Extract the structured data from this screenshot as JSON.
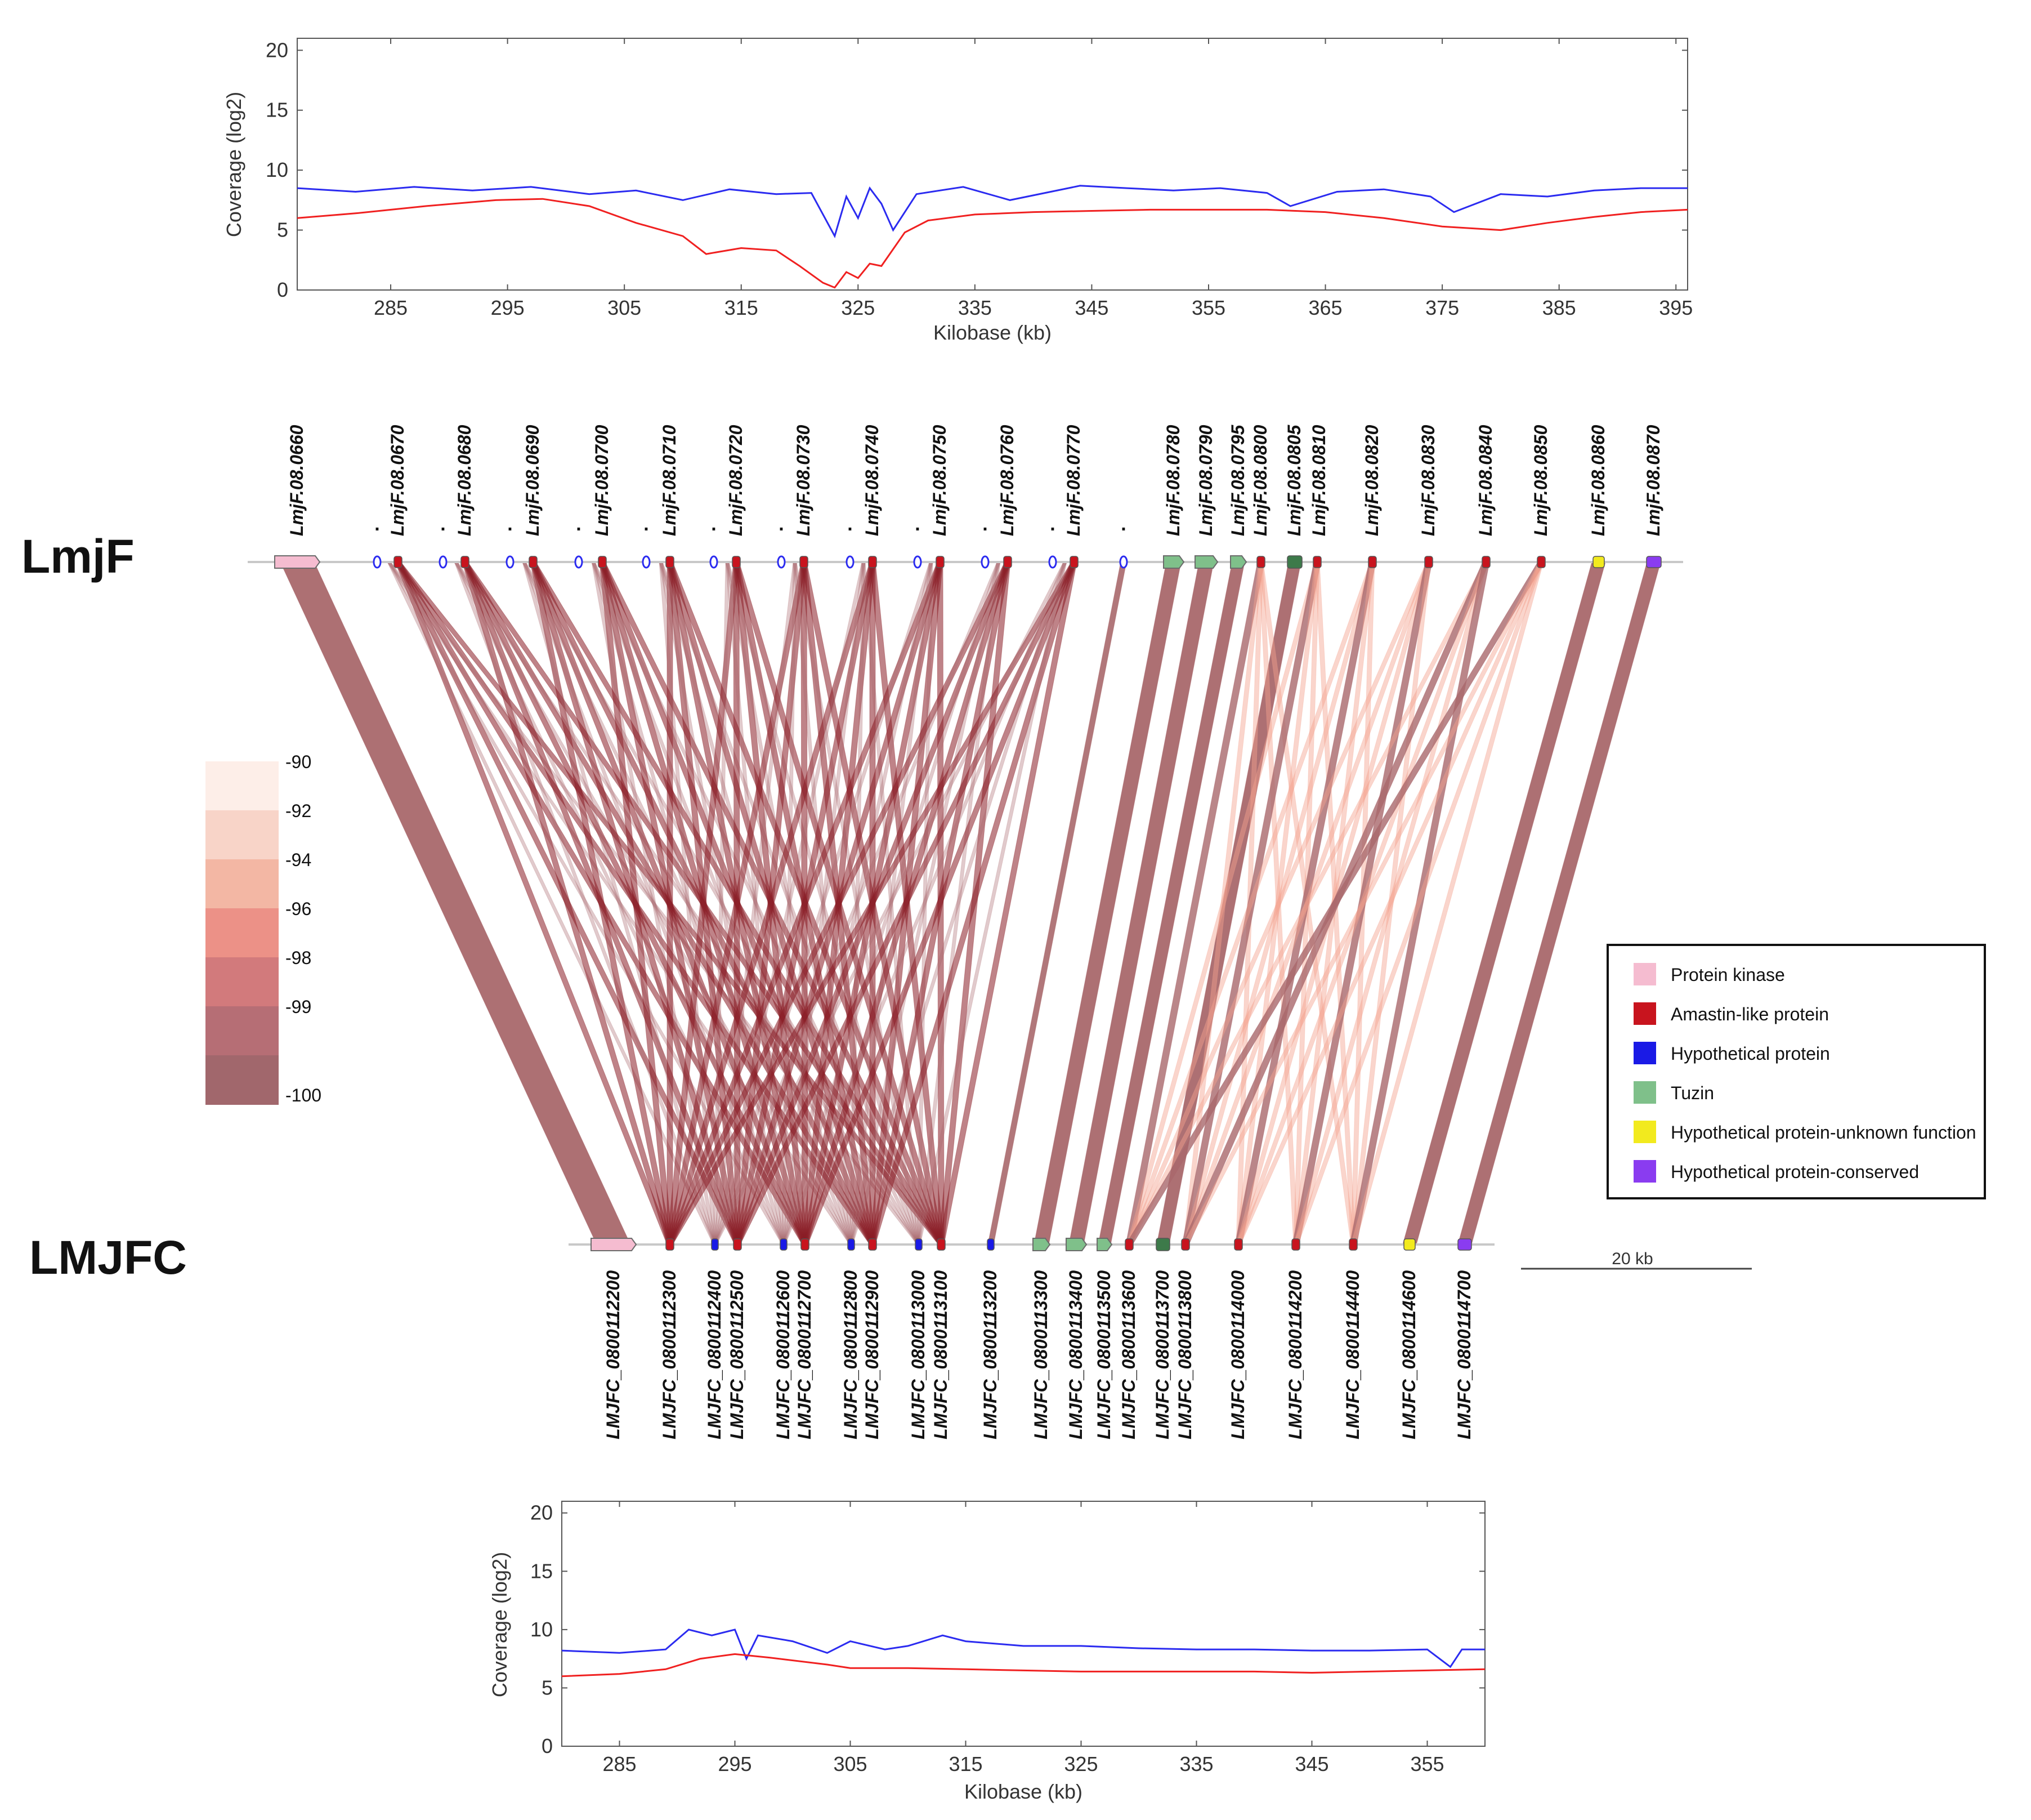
{
  "colors": {
    "coverage_a": "#2b2bf0",
    "coverage_b": "#f02020",
    "track_line": "#c8c8c8",
    "band_100": "#a9686c",
    "band_amastin": "#8b1e26",
    "band_light": "#f3a28e"
  },
  "tracks": {
    "top": "LmjF",
    "bottom": "LMJFC"
  },
  "scale_bar": "20 kb",
  "chart_data": [
    {
      "type": "line",
      "name": "coverage-top",
      "ylabel": "Coverage (log2)",
      "xlabel": "Kilobase (kb)",
      "xlim": [
        277,
        396
      ],
      "ylim": [
        0,
        21
      ],
      "xticks": [
        285,
        295,
        305,
        315,
        325,
        335,
        345,
        355,
        365,
        375,
        385,
        395
      ],
      "yticks": [
        0,
        5,
        10,
        15,
        20
      ],
      "series": [
        {
          "name": "blue",
          "color": "#2b2bf0",
          "x": [
            277,
            282,
            287,
            292,
            297,
            302,
            306,
            310,
            314,
            318,
            321,
            323,
            324,
            325,
            326,
            327,
            328,
            330,
            334,
            338,
            344,
            348,
            352,
            356,
            360,
            362,
            366,
            370,
            374,
            376,
            380,
            384,
            388,
            392,
            396
          ],
          "y": [
            8.5,
            8.2,
            8.6,
            8.3,
            8.6,
            8.0,
            8.3,
            7.5,
            8.4,
            8.0,
            8.1,
            4.5,
            7.8,
            6.0,
            8.5,
            7.2,
            5.0,
            8.0,
            8.6,
            7.5,
            8.7,
            8.5,
            8.3,
            8.5,
            8.1,
            7.0,
            8.2,
            8.4,
            7.8,
            6.5,
            8.0,
            7.8,
            8.3,
            8.5,
            8.5
          ]
        },
        {
          "name": "red",
          "color": "#f02020",
          "x": [
            277,
            282,
            288,
            294,
            298,
            302,
            306,
            310,
            312,
            315,
            318,
            320,
            322,
            323,
            324,
            325,
            326,
            327,
            329,
            331,
            335,
            340,
            345,
            350,
            355,
            360,
            365,
            370,
            375,
            380,
            384,
            388,
            392,
            396
          ],
          "y": [
            6.0,
            6.4,
            7.0,
            7.5,
            7.6,
            7.0,
            5.6,
            4.5,
            3.0,
            3.5,
            3.3,
            2.0,
            0.6,
            0.2,
            1.5,
            1.0,
            2.2,
            2.0,
            4.8,
            5.8,
            6.3,
            6.5,
            6.6,
            6.7,
            6.7,
            6.7,
            6.5,
            6.0,
            5.3,
            5.0,
            5.6,
            6.1,
            6.5,
            6.7
          ]
        }
      ]
    },
    {
      "type": "line",
      "name": "coverage-bottom",
      "ylabel": "Coverage (log2)",
      "xlabel": "Kilobase (kb)",
      "xlim": [
        280,
        360
      ],
      "ylim": [
        0,
        21
      ],
      "xticks": [
        285,
        295,
        305,
        315,
        325,
        335,
        345,
        355
      ],
      "yticks": [
        0,
        5,
        10,
        15,
        20
      ],
      "series": [
        {
          "name": "blue",
          "color": "#2b2bf0",
          "x": [
            280,
            285,
            289,
            291,
            293,
            295,
            296,
            297,
            300,
            303,
            305,
            308,
            310,
            313,
            315,
            320,
            325,
            330,
            335,
            340,
            345,
            350,
            355,
            357,
            358,
            360
          ],
          "y": [
            8.2,
            8.0,
            8.3,
            10.0,
            9.5,
            10.0,
            7.5,
            9.5,
            9.0,
            8.0,
            9.0,
            8.3,
            8.6,
            9.5,
            9.0,
            8.6,
            8.6,
            8.4,
            8.3,
            8.3,
            8.2,
            8.2,
            8.3,
            6.8,
            8.3,
            8.3
          ]
        },
        {
          "name": "red",
          "color": "#f02020",
          "x": [
            280,
            285,
            289,
            292,
            295,
            298,
            303,
            305,
            310,
            315,
            320,
            325,
            330,
            335,
            340,
            345,
            350,
            355,
            360
          ],
          "y": [
            6.0,
            6.2,
            6.6,
            7.5,
            7.9,
            7.6,
            7.0,
            6.7,
            6.7,
            6.6,
            6.5,
            6.4,
            6.4,
            6.4,
            6.4,
            6.3,
            6.4,
            6.5,
            6.6
          ]
        }
      ]
    },
    {
      "type": "heatmap",
      "name": "identity-colorscale",
      "labels": [
        "-90",
        "-92",
        "-94",
        "-96",
        "-98",
        "-99",
        "-100"
      ],
      "values": [
        -90,
        -92,
        -94,
        -96,
        -98,
        -99,
        -100
      ],
      "colors": [
        "#fdeee8",
        "#f8d4c8",
        "#f3b7a4",
        "#ec9187",
        "#d27a7c",
        "#b66e75",
        "#a1676c"
      ]
    }
  ],
  "top_genes": [
    {
      "label": "LmjF.08.0660",
      "type": "kinase"
    },
    {
      "label": "LmjF.08.0670",
      "type": "amastin"
    },
    {
      "label": "LmjF.08.0680",
      "type": "amastin"
    },
    {
      "label": "LmjF.08.0690",
      "type": "amastin"
    },
    {
      "label": "LmjF.08.0700",
      "type": "amastin"
    },
    {
      "label": "LmjF.08.0710",
      "type": "amastin"
    },
    {
      "label": "LmjF.08.0720",
      "type": "amastin"
    },
    {
      "label": "LmjF.08.0730",
      "type": "amastin"
    },
    {
      "label": "LmjF.08.0740",
      "type": "amastin"
    },
    {
      "label": "LmjF.08.0750",
      "type": "amastin"
    },
    {
      "label": "LmjF.08.0760",
      "type": "amastin"
    },
    {
      "label": "LmjF.08.0770",
      "type": "amastin"
    },
    {
      "label": "LmjF.08.0780",
      "type": "tuzin"
    },
    {
      "label": "LmjF.08.0790",
      "type": "tuzin"
    },
    {
      "label": "LmjF.08.0795",
      "type": "tuzin"
    },
    {
      "label": "LmjF.08.0800",
      "type": "amastin"
    },
    {
      "label": "LmjF.08.0805",
      "type": "tuzin_dark"
    },
    {
      "label": "LmjF.08.0810",
      "type": "amastin"
    },
    {
      "label": "LmjF.08.0820",
      "type": "amastin"
    },
    {
      "label": "LmjF.08.0830",
      "type": "amastin"
    },
    {
      "label": "LmjF.08.0840",
      "type": "amastin"
    },
    {
      "label": "LmjF.08.0850",
      "type": "amastin"
    },
    {
      "label": "LmjF.08.0860",
      "type": "unknown"
    },
    {
      "label": "LmjF.08.0870",
      "type": "conserved"
    }
  ],
  "bottom_genes": [
    {
      "label": "LMJFC_0800112200",
      "type": "kinase"
    },
    {
      "label": "LMJFC_0800112300",
      "type": "amastin"
    },
    {
      "label": "LMJFC_0800112400",
      "type": "hypothetical"
    },
    {
      "label": "LMJFC_0800112500",
      "type": "amastin"
    },
    {
      "label": "LMJFC_0800112600",
      "type": "hypothetical"
    },
    {
      "label": "LMJFC_0800112700",
      "type": "amastin"
    },
    {
      "label": "LMJFC_0800112800",
      "type": "hypothetical"
    },
    {
      "label": "LMJFC_0800112900",
      "type": "amastin"
    },
    {
      "label": "LMJFC_0800113000",
      "type": "hypothetical"
    },
    {
      "label": "LMJFC_0800113100",
      "type": "amastin"
    },
    {
      "label": "LMJFC_0800113200",
      "type": "hypothetical"
    },
    {
      "label": "LMJFC_0800113300",
      "type": "tuzin"
    },
    {
      "label": "LMJFC_0800113400",
      "type": "tuzin"
    },
    {
      "label": "LMJFC_0800113500",
      "type": "tuzin"
    },
    {
      "label": "LMJFC_0800113600",
      "type": "amastin"
    },
    {
      "label": "LMJFC_0800113700",
      "type": "tuzin_dark"
    },
    {
      "label": "LMJFC_0800113800",
      "type": "amastin"
    },
    {
      "label": "LMJFC_0800114000",
      "type": "amastin"
    },
    {
      "label": "LMJFC_0800114200",
      "type": "amastin"
    },
    {
      "label": "LMJFC_0800114400",
      "type": "amastin"
    },
    {
      "label": "LMJFC_0800114600",
      "type": "unknown"
    },
    {
      "label": "LMJFC_0800114700",
      "type": "conserved"
    }
  ],
  "legend": [
    {
      "label": "Protein kinase",
      "color": "#f5bcd0"
    },
    {
      "label": "Amastin-like protein",
      "color": "#c8141e"
    },
    {
      "label": "Hypothetical protein",
      "color": "#1a1ae6"
    },
    {
      "label": "Tuzin",
      "color": "#7fc08a"
    },
    {
      "label": "Hypothetical protein-unknown function",
      "color": "#f2ea1e"
    },
    {
      "label": "Hypothetical protein-conserved",
      "color": "#8a3cf0"
    }
  ]
}
